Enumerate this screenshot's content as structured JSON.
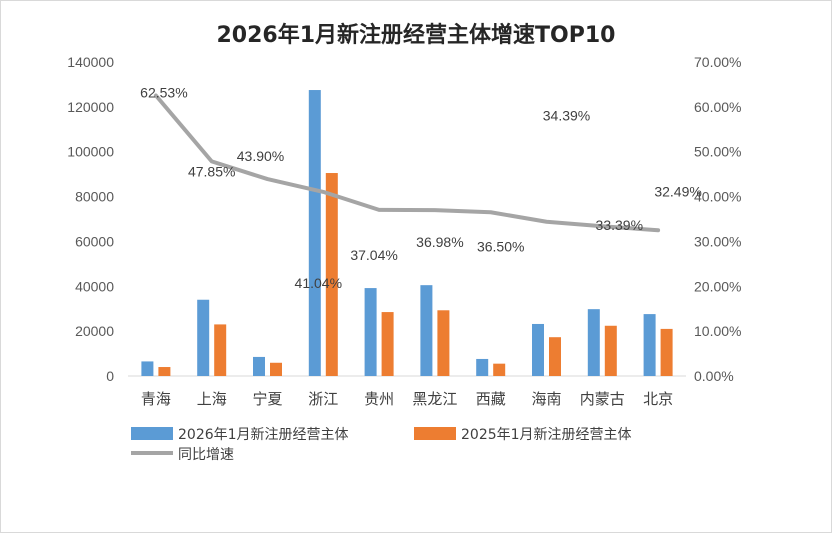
{
  "chart_data": {
    "type": "bar",
    "title": "2026年1月新注册经营主体增速TOP10",
    "categories": [
      "青海",
      "上海",
      "宁夏",
      "浙江",
      "贵州",
      "黑龙江",
      "西藏",
      "海南",
      "内蒙古",
      "北京"
    ],
    "series": [
      {
        "name": "2026年1月新注册经营主体",
        "type": "bar",
        "axis": "left",
        "color": "#5b9bd5",
        "values": [
          6500,
          34000,
          8500,
          127500,
          39200,
          40500,
          7600,
          23200,
          29800,
          27600
        ]
      },
      {
        "name": "2025年1月新注册经营主体",
        "type": "bar",
        "axis": "left",
        "color": "#ed7d31",
        "values": [
          4000,
          23000,
          5900,
          90500,
          28500,
          29300,
          5500,
          17300,
          22400,
          21000
        ]
      },
      {
        "name": "同比增速",
        "type": "line",
        "axis": "right",
        "color": "#a5a5a5",
        "values": [
          62.53,
          47.85,
          43.9,
          41.04,
          37.04,
          36.98,
          36.5,
          34.39,
          33.39,
          32.49
        ]
      }
    ],
    "data_labels": [
      "62.53%",
      "47.85%",
      "43.90%",
      "41.04%",
      "37.04%",
      "36.98%",
      "36.50%",
      "34.39%",
      "33.39%",
      "32.49%"
    ],
    "ylim_left": [
      0,
      140000
    ],
    "yticks_left": [
      "0",
      "20000",
      "40000",
      "60000",
      "80000",
      "100000",
      "120000",
      "140000"
    ],
    "ylim_right": [
      0,
      70
    ],
    "yticks_right": [
      "0.00%",
      "10.00%",
      "20.00%",
      "30.00%",
      "40.00%",
      "50.00%",
      "60.00%",
      "70.00%"
    ],
    "grid": "none",
    "legend_position": "bottom-left"
  }
}
